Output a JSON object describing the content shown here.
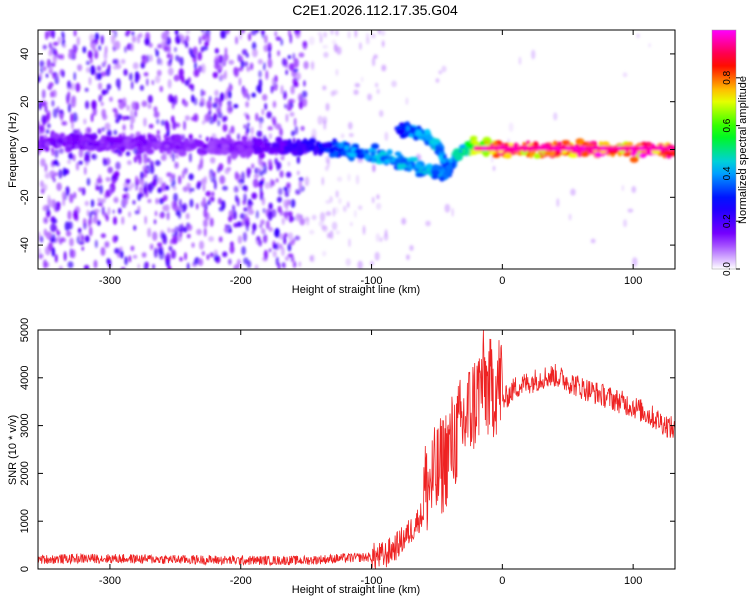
{
  "title": "C2E1.2026.112.17.35.G04",
  "chart_data": [
    {
      "type": "heatmap",
      "xlabel": "Height of straight line (km)",
      "ylabel": "Frequency (Hz)",
      "xlim": [
        -355,
        132
      ],
      "ylim": [
        -50,
        50
      ],
      "xticks": [
        -300,
        -200,
        -100,
        0,
        100
      ],
      "yticks": [
        -40,
        -20,
        0,
        20,
        40
      ],
      "grid": false,
      "colorbar": {
        "label": "Normalized spectral amplitude",
        "range": [
          0,
          1
        ],
        "ticks": [
          "0.0",
          "0.2",
          "0.4",
          "0.6",
          "0.8"
        ],
        "colors": [
          "#ffffff",
          "#7a00ff",
          "#0000ff",
          "#00c8ff",
          "#00ff00",
          "#ffff00",
          "#ff0000",
          "#ff00ff"
        ]
      },
      "ridge": {
        "x": [
          -355,
          -300,
          -250,
          -200,
          -150,
          -120,
          -100,
          -80,
          -60,
          -45,
          -40,
          -30,
          -20,
          -10,
          0,
          50,
          100,
          132
        ],
        "y": [
          3,
          3,
          2,
          1,
          1,
          0,
          -2,
          -5,
          -8,
          -10,
          -6,
          0,
          1,
          1,
          0,
          0,
          0,
          0
        ],
        "amplitude": [
          0.15,
          0.15,
          0.14,
          0.14,
          0.25,
          0.4,
          0.45,
          0.45,
          0.45,
          0.45,
          0.45,
          0.5,
          0.8,
          0.9,
          0.95,
          0.95,
          0.95,
          0.95
        ]
      },
      "secondary_ridge": {
        "x": [
          -80,
          -70,
          -60,
          -50,
          -45,
          -40
        ],
        "y": [
          9,
          8,
          6,
          2,
          -4,
          -9
        ],
        "amplitude": [
          0.3,
          0.4,
          0.45,
          0.45,
          0.4,
          0.35
        ]
      }
    },
    {
      "type": "line",
      "xlabel": "Height of straight line (km)",
      "ylabel": "SNR (10 * v/v)",
      "xlim": [
        -355,
        132
      ],
      "ylim": [
        0,
        5000
      ],
      "xticks": [
        -300,
        -200,
        -100,
        0,
        100
      ],
      "yticks": [
        0,
        1000,
        2000,
        3000,
        4000,
        5000
      ],
      "color": "#ee2222",
      "grid": false,
      "series": [
        {
          "x": [
            -355,
            -320,
            -300,
            -250,
            -200,
            -150,
            -120,
            -100,
            -90,
            -80,
            -70,
            -60,
            -50,
            -40,
            -30,
            -20,
            -15,
            -10,
            0,
            10,
            20,
            30,
            40,
            60,
            80,
            100,
            120,
            132
          ],
          "y": [
            200,
            220,
            220,
            200,
            180,
            180,
            230,
            250,
            280,
            500,
            800,
            1200,
            1500,
            2100,
            2600,
            3100,
            3500,
            3300,
            3500,
            3800,
            3900,
            4000,
            4050,
            3800,
            3600,
            3400,
            3100,
            2900
          ]
        }
      ]
    }
  ]
}
